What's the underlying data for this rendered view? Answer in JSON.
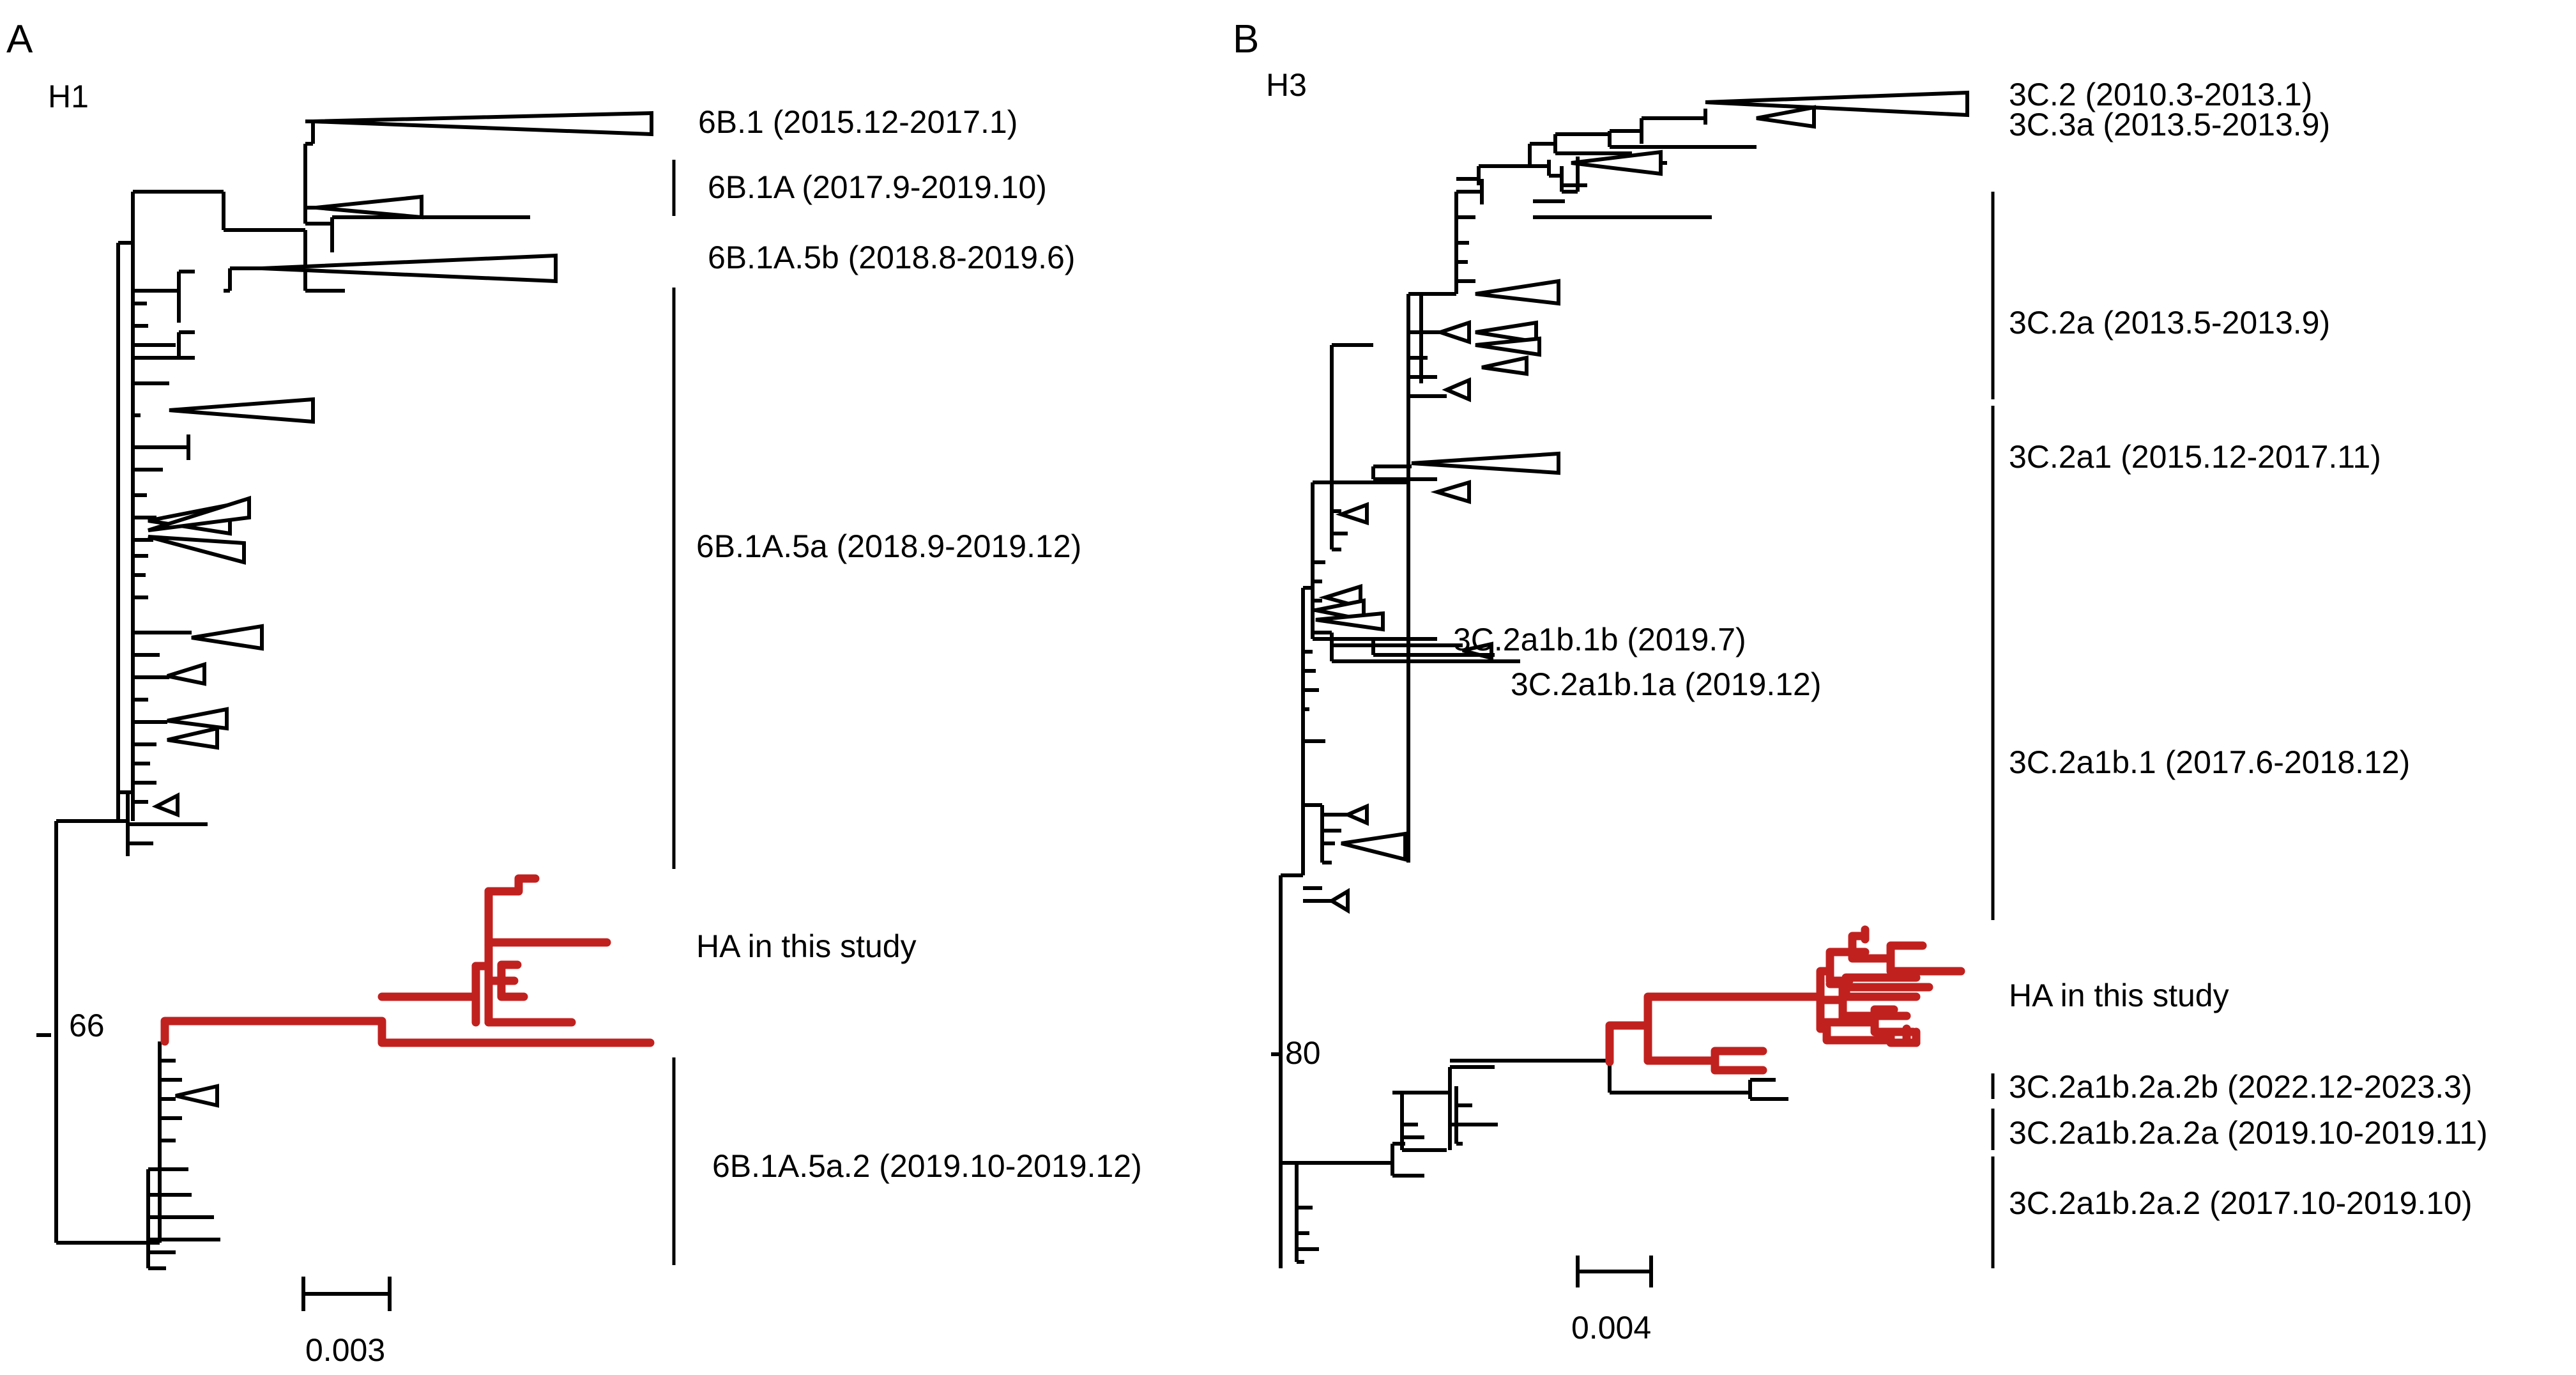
{
  "colors": {
    "tree": "#000000",
    "highlight": "#c0211f",
    "background": "#ffffff"
  },
  "panelA": {
    "letter": "A",
    "title": "H1",
    "clades": {
      "c1": "6B.1 (2015.12-2017.1)",
      "c2": "6B.1A (2017.9-2019.10)",
      "c3": "6B.1A.5b (2018.8-2019.6)",
      "c4": "6B.1A.5a (2018.9-2019.12)",
      "study": "HA in this study",
      "c5": "6B.1A.5a.2 (2019.10-2019.12)"
    },
    "bootstrap": "66",
    "scale": "0.003"
  },
  "panelB": {
    "letter": "B",
    "title": "H3",
    "clades": {
      "c1": "3C.2 (2010.3-2013.1)",
      "c2": "3C.3a (2013.5-2013.9)",
      "c3": "3C.2a (2013.5-2013.9)",
      "c4": "3C.2a1 (2015.12-2017.11)",
      "c5": "3C.2a1b.1b (2019.7)",
      "c6": "3C.2a1b.1a (2019.12)",
      "c7": "3C.2a1b.1 (2017.6-2018.12)",
      "study": "HA in this study",
      "c8": "3C.2a1b.2a.2b (2022.12-2023.3)",
      "c9": "3C.2a1b.2a.2a (2019.10-2019.11)",
      "c10": "3C.2a1b.2a.2 (2017.10-2019.10)"
    },
    "bootstrap": "80",
    "scale": "0.004"
  }
}
